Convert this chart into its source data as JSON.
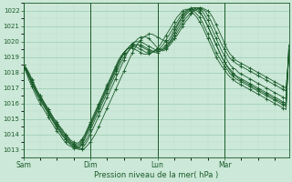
{
  "xlabel": "Pression niveau de la mer( hPa )",
  "bg_color": "#cce8d8",
  "grid_color_major": "#99ccb0",
  "grid_color_minor": "#bbddcc",
  "line_color": "#1a5c2a",
  "ylim": [
    1012.5,
    1022.5
  ],
  "yticks": [
    1013,
    1014,
    1015,
    1016,
    1017,
    1018,
    1019,
    1020,
    1021,
    1022
  ],
  "day_labels": [
    "Sam",
    "Dim",
    "Lun",
    "Mar"
  ],
  "day_positions": [
    0,
    24,
    48,
    72
  ],
  "xlim": [
    0,
    95
  ],
  "n_points": 96,
  "lines": [
    [
      1018.5,
      1018.2,
      1017.8,
      1017.4,
      1017.1,
      1016.8,
      1016.5,
      1016.2,
      1015.9,
      1015.6,
      1015.3,
      1015.0,
      1014.8,
      1014.5,
      1014.3,
      1014.0,
      1013.8,
      1013.5,
      1013.3,
      1013.2,
      1013.1,
      1013.0,
      1013.1,
      1013.3,
      1013.5,
      1013.8,
      1014.1,
      1014.5,
      1014.9,
      1015.3,
      1015.7,
      1016.1,
      1016.5,
      1016.9,
      1017.3,
      1017.7,
      1018.1,
      1018.5,
      1018.9,
      1019.3,
      1019.6,
      1019.9,
      1020.1,
      1020.3,
      1020.4,
      1020.5,
      1020.5,
      1020.4,
      1020.3,
      1020.2,
      1020.1,
      1020.0,
      1019.9,
      1020.0,
      1020.2,
      1020.4,
      1020.7,
      1021.0,
      1021.3,
      1021.5,
      1021.8,
      1022.0,
      1022.1,
      1022.2,
      1022.2,
      1022.1,
      1022.0,
      1021.8,
      1021.5,
      1021.1,
      1020.7,
      1020.3,
      1019.9,
      1019.5,
      1019.2,
      1019.0,
      1018.8,
      1018.7,
      1018.6,
      1018.5,
      1018.4,
      1018.3,
      1018.2,
      1018.1,
      1018.0,
      1017.9,
      1017.8,
      1017.7,
      1017.6,
      1017.5,
      1017.4,
      1017.3,
      1017.2,
      1017.1,
      1017.0,
      1018.9
    ],
    [
      1018.5,
      1018.1,
      1017.7,
      1017.3,
      1016.9,
      1016.6,
      1016.3,
      1016.0,
      1015.7,
      1015.4,
      1015.1,
      1014.8,
      1014.5,
      1014.2,
      1013.9,
      1013.7,
      1013.5,
      1013.3,
      1013.2,
      1013.1,
      1013.0,
      1013.1,
      1013.3,
      1013.6,
      1014.0,
      1014.4,
      1014.8,
      1015.2,
      1015.6,
      1016.0,
      1016.4,
      1016.8,
      1017.2,
      1017.6,
      1018.0,
      1018.4,
      1018.8,
      1019.2,
      1019.5,
      1019.8,
      1020.0,
      1020.2,
      1020.3,
      1020.3,
      1020.3,
      1020.2,
      1020.0,
      1019.8,
      1019.6,
      1019.5,
      1019.4,
      1019.5,
      1019.7,
      1019.9,
      1020.2,
      1020.6,
      1020.9,
      1021.2,
      1021.5,
      1021.7,
      1021.9,
      1022.1,
      1022.2,
      1022.2,
      1022.1,
      1022.0,
      1021.7,
      1021.4,
      1021.0,
      1020.6,
      1020.2,
      1019.8,
      1019.5,
      1019.2,
      1018.9,
      1018.8,
      1018.6,
      1018.5,
      1018.4,
      1018.3,
      1018.2,
      1018.1,
      1018.0,
      1017.9,
      1017.8,
      1017.7,
      1017.6,
      1017.5,
      1017.4,
      1017.3,
      1017.2,
      1017.1,
      1017.0,
      1016.9,
      1016.8,
      1019.2
    ],
    [
      1018.5,
      1018.0,
      1017.5,
      1017.1,
      1016.7,
      1016.3,
      1016.0,
      1015.7,
      1015.4,
      1015.1,
      1014.8,
      1014.5,
      1014.2,
      1014.0,
      1013.7,
      1013.5,
      1013.3,
      1013.2,
      1013.1,
      1013.1,
      1013.2,
      1013.4,
      1013.7,
      1014.1,
      1014.5,
      1014.9,
      1015.3,
      1015.7,
      1016.1,
      1016.5,
      1016.9,
      1017.3,
      1017.7,
      1018.1,
      1018.5,
      1018.9,
      1019.2,
      1019.5,
      1019.7,
      1019.9,
      1020.0,
      1020.0,
      1020.0,
      1019.9,
      1019.8,
      1019.7,
      1019.6,
      1019.5,
      1019.4,
      1019.4,
      1019.5,
      1019.6,
      1019.8,
      1020.1,
      1020.4,
      1020.8,
      1021.1,
      1021.4,
      1021.7,
      1021.9,
      1022.1,
      1022.2,
      1022.2,
      1022.1,
      1022.0,
      1021.7,
      1021.4,
      1021.0,
      1020.6,
      1020.2,
      1019.8,
      1019.4,
      1019.1,
      1018.8,
      1018.5,
      1018.3,
      1018.2,
      1018.0,
      1017.9,
      1017.8,
      1017.7,
      1017.6,
      1017.5,
      1017.4,
      1017.3,
      1017.2,
      1017.1,
      1017.0,
      1016.9,
      1016.8,
      1016.7,
      1016.6,
      1016.5,
      1016.4,
      1016.3,
      1019.5
    ],
    [
      1018.5,
      1018.1,
      1017.7,
      1017.3,
      1016.9,
      1016.5,
      1016.2,
      1015.9,
      1015.6,
      1015.3,
      1015.0,
      1014.7,
      1014.4,
      1014.2,
      1013.9,
      1013.7,
      1013.5,
      1013.3,
      1013.2,
      1013.1,
      1013.1,
      1013.3,
      1013.5,
      1013.8,
      1014.3,
      1014.7,
      1015.1,
      1015.5,
      1015.9,
      1016.3,
      1016.7,
      1017.1,
      1017.5,
      1017.9,
      1018.3,
      1018.7,
      1019.0,
      1019.3,
      1019.5,
      1019.7,
      1019.8,
      1019.8,
      1019.8,
      1019.7,
      1019.6,
      1019.5,
      1019.4,
      1019.3,
      1019.3,
      1019.4,
      1019.5,
      1019.7,
      1019.9,
      1020.2,
      1020.6,
      1021.0,
      1021.3,
      1021.6,
      1021.8,
      1022.0,
      1022.1,
      1022.1,
      1022.0,
      1021.9,
      1021.7,
      1021.4,
      1021.0,
      1020.6,
      1020.2,
      1019.8,
      1019.4,
      1019.0,
      1018.7,
      1018.4,
      1018.2,
      1018.0,
      1017.8,
      1017.7,
      1017.6,
      1017.5,
      1017.4,
      1017.3,
      1017.2,
      1017.1,
      1017.0,
      1016.9,
      1016.8,
      1016.7,
      1016.6,
      1016.5,
      1016.4,
      1016.3,
      1016.2,
      1016.1,
      1016.0,
      1019.8
    ],
    [
      1018.5,
      1018.2,
      1017.8,
      1017.4,
      1017.0,
      1016.6,
      1016.3,
      1016.0,
      1015.7,
      1015.4,
      1015.1,
      1014.8,
      1014.5,
      1014.3,
      1014.0,
      1013.8,
      1013.6,
      1013.4,
      1013.3,
      1013.2,
      1013.3,
      1013.5,
      1013.8,
      1014.2,
      1014.6,
      1015.0,
      1015.4,
      1015.8,
      1016.2,
      1016.6,
      1017.0,
      1017.4,
      1017.8,
      1018.2,
      1018.6,
      1019.0,
      1019.3,
      1019.5,
      1019.7,
      1019.8,
      1019.8,
      1019.8,
      1019.7,
      1019.6,
      1019.5,
      1019.4,
      1019.4,
      1019.4,
      1019.4,
      1019.5,
      1019.6,
      1019.8,
      1020.1,
      1020.4,
      1020.8,
      1021.1,
      1021.4,
      1021.7,
      1021.9,
      1022.1,
      1022.2,
      1022.2,
      1022.1,
      1022.0,
      1021.7,
      1021.4,
      1021.0,
      1020.6,
      1020.2,
      1019.8,
      1019.4,
      1019.0,
      1018.7,
      1018.4,
      1018.1,
      1017.9,
      1017.8,
      1017.6,
      1017.5,
      1017.4,
      1017.3,
      1017.2,
      1017.1,
      1017.0,
      1016.9,
      1016.8,
      1016.7,
      1016.6,
      1016.5,
      1016.4,
      1016.3,
      1016.2,
      1016.1,
      1016.0,
      1015.9,
      1019.3
    ],
    [
      1018.5,
      1018.3,
      1017.9,
      1017.5,
      1017.1,
      1016.7,
      1016.4,
      1016.1,
      1015.8,
      1015.5,
      1015.2,
      1014.9,
      1014.6,
      1014.4,
      1014.1,
      1013.9,
      1013.7,
      1013.5,
      1013.4,
      1013.3,
      1013.4,
      1013.6,
      1013.9,
      1014.3,
      1014.7,
      1015.1,
      1015.5,
      1015.9,
      1016.3,
      1016.7,
      1017.1,
      1017.5,
      1017.9,
      1018.3,
      1018.7,
      1019.0,
      1019.3,
      1019.5,
      1019.6,
      1019.7,
      1019.7,
      1019.6,
      1019.5,
      1019.4,
      1019.3,
      1019.3,
      1019.3,
      1019.4,
      1019.5,
      1019.6,
      1019.8,
      1020.1,
      1020.4,
      1020.7,
      1021.0,
      1021.3,
      1021.6,
      1021.8,
      1022.0,
      1022.1,
      1022.1,
      1022.0,
      1021.8,
      1021.6,
      1021.3,
      1020.9,
      1020.5,
      1020.1,
      1019.7,
      1019.3,
      1019.0,
      1018.7,
      1018.4,
      1018.2,
      1017.9,
      1017.8,
      1017.6,
      1017.5,
      1017.4,
      1017.3,
      1017.2,
      1017.1,
      1017.0,
      1016.9,
      1016.8,
      1016.7,
      1016.6,
      1016.5,
      1016.4,
      1016.3,
      1016.2,
      1016.1,
      1016.0,
      1015.9,
      1015.8,
      1019.3
    ],
    [
      1018.5,
      1018.3,
      1018.0,
      1017.6,
      1017.2,
      1016.8,
      1016.5,
      1016.2,
      1015.9,
      1015.6,
      1015.3,
      1015.0,
      1014.7,
      1014.5,
      1014.2,
      1014.0,
      1013.8,
      1013.6,
      1013.5,
      1013.4,
      1013.5,
      1013.7,
      1014.0,
      1014.4,
      1014.8,
      1015.2,
      1015.6,
      1016.0,
      1016.4,
      1016.8,
      1017.2,
      1017.6,
      1018.0,
      1018.4,
      1018.8,
      1019.1,
      1019.3,
      1019.5,
      1019.6,
      1019.6,
      1019.5,
      1019.4,
      1019.3,
      1019.2,
      1019.2,
      1019.2,
      1019.3,
      1019.4,
      1019.6,
      1019.8,
      1020.1,
      1020.4,
      1020.7,
      1021.0,
      1021.3,
      1021.6,
      1021.8,
      1022.0,
      1022.1,
      1022.1,
      1022.0,
      1021.8,
      1021.6,
      1021.3,
      1021.0,
      1020.6,
      1020.2,
      1019.8,
      1019.4,
      1019.0,
      1018.7,
      1018.4,
      1018.2,
      1017.9,
      1017.7,
      1017.6,
      1017.4,
      1017.3,
      1017.2,
      1017.1,
      1017.0,
      1016.9,
      1016.8,
      1016.7,
      1016.6,
      1016.5,
      1016.4,
      1016.3,
      1016.2,
      1016.1,
      1016.0,
      1015.9,
      1015.8,
      1015.7,
      1015.6,
      1019.5
    ]
  ]
}
